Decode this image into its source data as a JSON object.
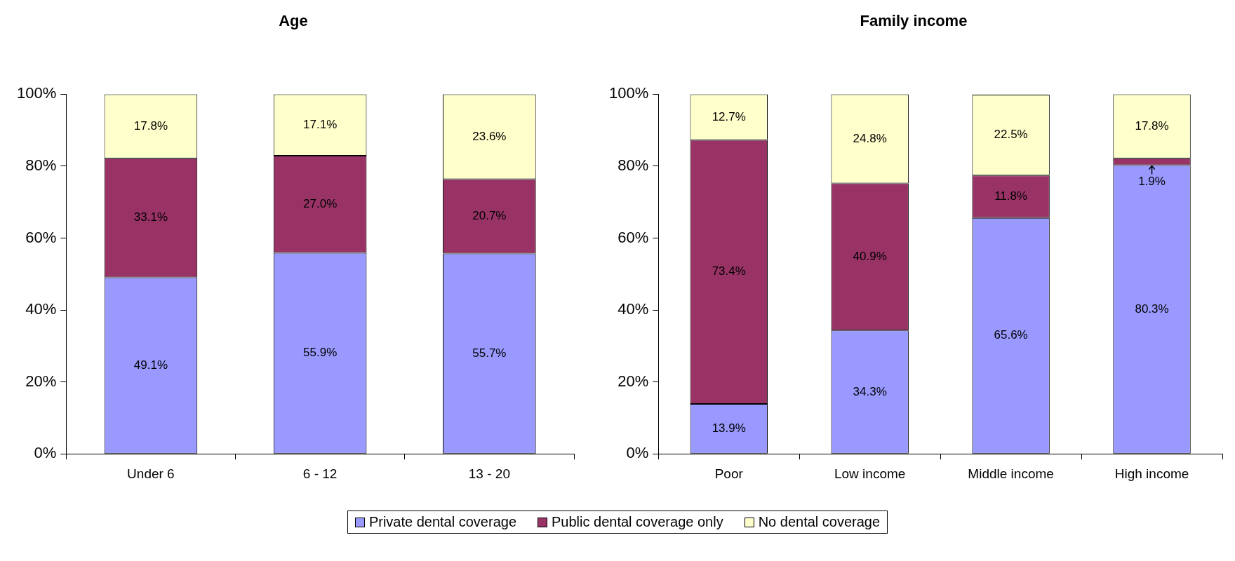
{
  "chart_data": [
    {
      "type": "bar",
      "title": "Age",
      "stacked": true,
      "grid": false,
      "legend": "bottom",
      "data_labels": false,
      "categories": [
        "Under 6",
        "6 - 12",
        "13 - 20"
      ],
      "ylim": [
        0,
        100
      ],
      "yticks": [
        {
          "value": 0,
          "label": "0%"
        },
        {
          "value": 20,
          "label": "20%"
        },
        {
          "value": 40,
          "label": "40%"
        },
        {
          "value": 60,
          "label": "60%"
        },
        {
          "value": 80,
          "label": "80%"
        },
        {
          "value": 100,
          "label": "100%"
        }
      ],
      "series": [
        {
          "name": "Private dental coverage",
          "color": "#9999ff",
          "values": [
            49.1,
            55.9,
            55.7
          ],
          "value_labels": [
            "49.1%",
            "55.9%",
            "55.7%"
          ]
        },
        {
          "name": "Public dental coverage only",
          "color": "#993366",
          "values": [
            33.1,
            27.0,
            20.7
          ],
          "value_labels": [
            "33.1%",
            "27.0%",
            "20.7%"
          ]
        },
        {
          "name": "No dental coverage",
          "color": "#ffffcc",
          "values": [
            17.8,
            17.1,
            23.6
          ],
          "value_labels": [
            "17.8%",
            "17.1%",
            "23.6%"
          ]
        }
      ]
    },
    {
      "type": "bar",
      "title": "Family income",
      "stacked": true,
      "grid": false,
      "data_labels": false,
      "categories": [
        "Poor",
        "Low income",
        "Middle income",
        "High income"
      ],
      "ylim": [
        0,
        100
      ],
      "yticks": [
        {
          "value": 0,
          "label": "0%"
        },
        {
          "value": 20,
          "label": "20%"
        },
        {
          "value": 40,
          "label": "40%"
        },
        {
          "value": 60,
          "label": "60%"
        },
        {
          "value": 80,
          "label": "80%"
        },
        {
          "value": 100,
          "label": "100%"
        }
      ],
      "series": [
        {
          "color": "#9999ff",
          "values": [
            13.9,
            34.3,
            65.6,
            80.3
          ],
          "value_labels": [
            "13.9%",
            "34.3%",
            "65.6%",
            "80.3%"
          ]
        },
        {
          "color": "#993366",
          "values": [
            73.4,
            40.9,
            11.8,
            1.9
          ],
          "value_labels": [
            "73.4%",
            "40.9%",
            "11.8%",
            "1.9%"
          ]
        },
        {
          "color": "#ffffcc",
          "values": [
            12.7,
            24.8,
            22.5,
            17.8
          ],
          "value_labels": [
            "12.7%",
            "24.8%",
            "22.5%",
            "17.8%"
          ]
        }
      ]
    }
  ]
}
